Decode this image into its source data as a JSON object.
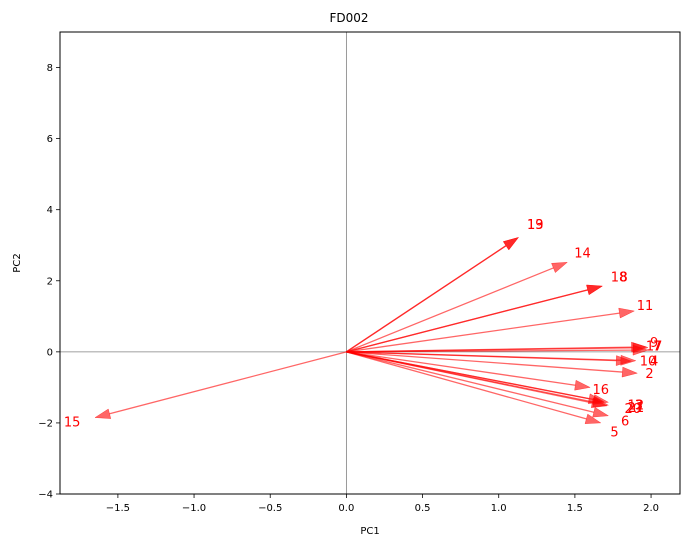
{
  "chart_data": {
    "type": "biplot",
    "title": "FD002",
    "xlabel": "PC1",
    "ylabel": "PC2",
    "xlim": [
      -1.88,
      2.19
    ],
    "ylim": [
      -4,
      9
    ],
    "xticks": [
      -1.5,
      -1.0,
      -0.5,
      0.0,
      0.5,
      1.0,
      1.5,
      2.0
    ],
    "xtick_labels": [
      "−1.5",
      "−1.0",
      "−0.5",
      "0.0",
      "0.5",
      "1.0",
      "1.5",
      "2.0"
    ],
    "yticks": [
      -4,
      -2,
      0,
      2,
      4,
      6,
      8
    ],
    "ytick_labels": [
      "−4",
      "−2",
      "0",
      "2",
      "4",
      "6",
      "8"
    ],
    "reference_lines": {
      "x": 0,
      "y": 0
    },
    "color": "#ff0000",
    "vectors": [
      {
        "label": "19",
        "x": 1.13,
        "y": 3.22,
        "lx": 1.24,
        "ly": 3.55
      },
      {
        "label": "13",
        "x": 1.13,
        "y": 3.22,
        "lx": 1.24,
        "ly": 3.55
      },
      {
        "label": "14",
        "x": 1.45,
        "y": 2.52,
        "lx": 1.55,
        "ly": 2.75
      },
      {
        "label": "18",
        "x": 1.68,
        "y": 1.85,
        "lx": 1.79,
        "ly": 2.08
      },
      {
        "label": "8",
        "x": 1.68,
        "y": 1.85,
        "lx": 1.82,
        "ly": 2.08
      },
      {
        "label": "11",
        "x": 1.89,
        "y": 1.15,
        "lx": 1.96,
        "ly": 1.28
      },
      {
        "label": "9",
        "x": 1.97,
        "y": 0.14,
        "lx": 2.02,
        "ly": 0.23
      },
      {
        "label": "17",
        "x": 1.98,
        "y": 0.12,
        "lx": 2.02,
        "ly": 0.13
      },
      {
        "label": "7",
        "x": 1.98,
        "y": 0.05,
        "lx": 2.04,
        "ly": 0.13
      },
      {
        "label": "4",
        "x": 1.9,
        "y": -0.25,
        "lx": 2.02,
        "ly": -0.28
      },
      {
        "label": "10",
        "x": 1.87,
        "y": -0.26,
        "lx": 1.98,
        "ly": -0.28
      },
      {
        "label": "2",
        "x": 1.91,
        "y": -0.6,
        "lx": 1.99,
        "ly": -0.64
      },
      {
        "label": "16",
        "x": 1.6,
        "y": -1.0,
        "lx": 1.67,
        "ly": -1.09
      },
      {
        "label": "12",
        "x": 1.69,
        "y": -1.4,
        "lx": 1.9,
        "ly": -1.52
      },
      {
        "label": "3",
        "x": 1.72,
        "y": -1.42,
        "lx": 1.92,
        "ly": -1.52
      },
      {
        "label": "21",
        "x": 1.72,
        "y": -1.5,
        "lx": 1.9,
        "ly": -1.6
      },
      {
        "label": "20",
        "x": 1.71,
        "y": -1.52,
        "lx": 1.88,
        "ly": -1.62
      },
      {
        "label": "6",
        "x": 1.72,
        "y": -1.8,
        "lx": 1.83,
        "ly": -1.98
      },
      {
        "label": "5",
        "x": 1.67,
        "y": -2.0,
        "lx": 1.76,
        "ly": -2.28
      },
      {
        "label": "15",
        "x": -1.65,
        "y": -1.85,
        "lx": -1.8,
        "ly": -2.0
      }
    ]
  }
}
